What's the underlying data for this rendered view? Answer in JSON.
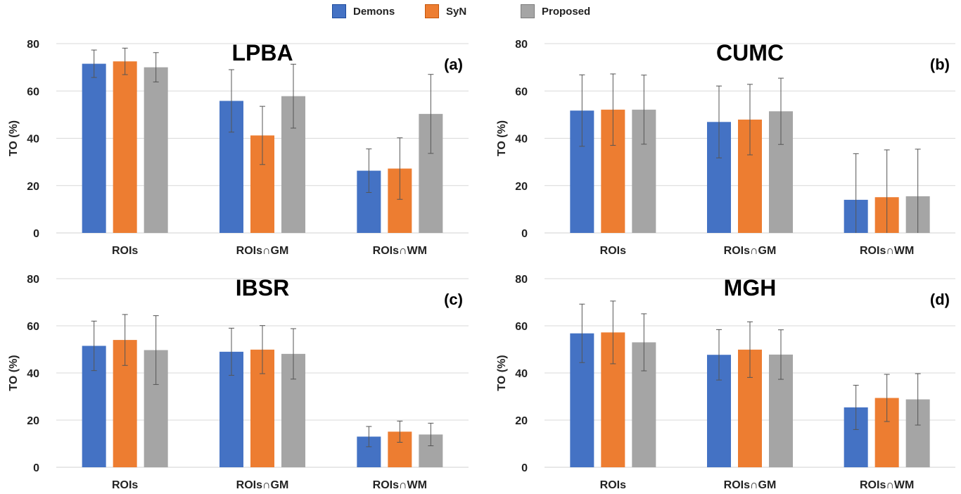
{
  "legend": [
    {
      "name": "Demons",
      "color": "#4472C4"
    },
    {
      "name": "SyN",
      "color": "#ED7D31"
    },
    {
      "name": "Proposed",
      "color": "#A5A5A5"
    }
  ],
  "chart_data": [
    {
      "type": "bar",
      "title": "LPBA",
      "panel_label": "(a)",
      "ylabel": "TO (%)",
      "ylim": [
        0,
        80
      ],
      "yticks": [
        0,
        20,
        40,
        60,
        80
      ],
      "grid": true,
      "categories": [
        "ROIs",
        "ROIs∩GM",
        "ROIs∩WM"
      ],
      "series": [
        {
          "name": "Demons",
          "values": [
            71.5,
            55.8,
            26.3
          ],
          "errors": [
            5.8,
            13.2,
            9.2
          ]
        },
        {
          "name": "SyN",
          "values": [
            72.5,
            41.2,
            27.2
          ],
          "errors": [
            5.6,
            12.3,
            13.0
          ]
        },
        {
          "name": "Proposed",
          "values": [
            70.0,
            57.8,
            50.3
          ],
          "errors": [
            6.2,
            13.5,
            16.7
          ]
        }
      ]
    },
    {
      "type": "bar",
      "title": "CUMC",
      "panel_label": "(b)",
      "ylabel": "TO (%)",
      "ylim": [
        0,
        80
      ],
      "yticks": [
        0,
        20,
        40,
        60,
        80
      ],
      "grid": true,
      "categories": [
        "ROIs",
        "ROIs∩GM",
        "ROIs∩WM"
      ],
      "series": [
        {
          "name": "Demons",
          "values": [
            51.7,
            46.9,
            14.0
          ],
          "errors": [
            15.1,
            15.2,
            19.5
          ]
        },
        {
          "name": "SyN",
          "values": [
            52.1,
            47.9,
            15.1
          ],
          "errors": [
            15.1,
            14.9,
            20.0
          ]
        },
        {
          "name": "Proposed",
          "values": [
            52.1,
            51.4,
            15.5
          ],
          "errors": [
            14.6,
            14.0,
            19.9
          ]
        }
      ]
    },
    {
      "type": "bar",
      "title": "IBSR",
      "panel_label": "(c)",
      "ylabel": "TO (%)",
      "ylim": [
        0,
        80
      ],
      "yticks": [
        0,
        20,
        40,
        60,
        80
      ],
      "grid": true,
      "categories": [
        "ROIs",
        "ROIs∩GM",
        "ROIs∩WM"
      ],
      "series": [
        {
          "name": "Demons",
          "values": [
            51.5,
            49.0,
            13.0
          ],
          "errors": [
            10.5,
            10.0,
            4.3
          ]
        },
        {
          "name": "SyN",
          "values": [
            54.0,
            49.9,
            15.1
          ],
          "errors": [
            10.8,
            10.2,
            4.5
          ]
        },
        {
          "name": "Proposed",
          "values": [
            49.7,
            48.1,
            13.9
          ],
          "errors": [
            14.6,
            10.7,
            4.8
          ]
        }
      ]
    },
    {
      "type": "bar",
      "title": "MGH",
      "panel_label": "(d)",
      "ylabel": "TO (%)",
      "ylim": [
        0,
        80
      ],
      "yticks": [
        0,
        20,
        40,
        60,
        80
      ],
      "grid": true,
      "categories": [
        "ROIs",
        "ROIs∩GM",
        "ROIs∩WM"
      ],
      "series": [
        {
          "name": "Demons",
          "values": [
            56.8,
            47.7,
            25.4
          ],
          "errors": [
            12.4,
            10.7,
            9.4
          ]
        },
        {
          "name": "SyN",
          "values": [
            57.2,
            49.9,
            29.4
          ],
          "errors": [
            13.3,
            11.8,
            10.0
          ]
        },
        {
          "name": "Proposed",
          "values": [
            53.0,
            47.8,
            28.8
          ],
          "errors": [
            12.1,
            10.5,
            10.9
          ]
        }
      ]
    }
  ]
}
